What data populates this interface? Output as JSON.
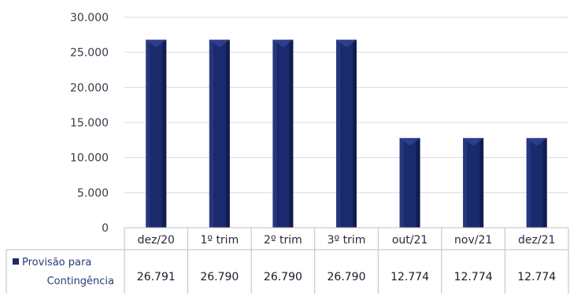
{
  "chart_data": {
    "type": "bar",
    "categories": [
      "dez/20",
      "1º trim",
      "2º trim",
      "3º trim",
      "out/21",
      "nov/21",
      "dez/21"
    ],
    "series": [
      {
        "name_line1": "Provisão para",
        "name_line2": "Contingência",
        "values": [
          26791,
          26790,
          26790,
          26790,
          12774,
          12774,
          12774
        ],
        "value_labels": [
          "26.791",
          "26.790",
          "26.790",
          "26.790",
          "12.774",
          "12.774",
          "12.774"
        ],
        "color": "#1a2a6c"
      }
    ],
    "yticks": [
      0,
      5000,
      10000,
      15000,
      20000,
      25000,
      30000
    ],
    "ytick_labels": [
      "0",
      "5.000",
      "10.000",
      "15.000",
      "20.000",
      "25.000",
      "30.000"
    ],
    "ylim": [
      0,
      30000
    ],
    "grid": true,
    "legend": "in data table"
  }
}
